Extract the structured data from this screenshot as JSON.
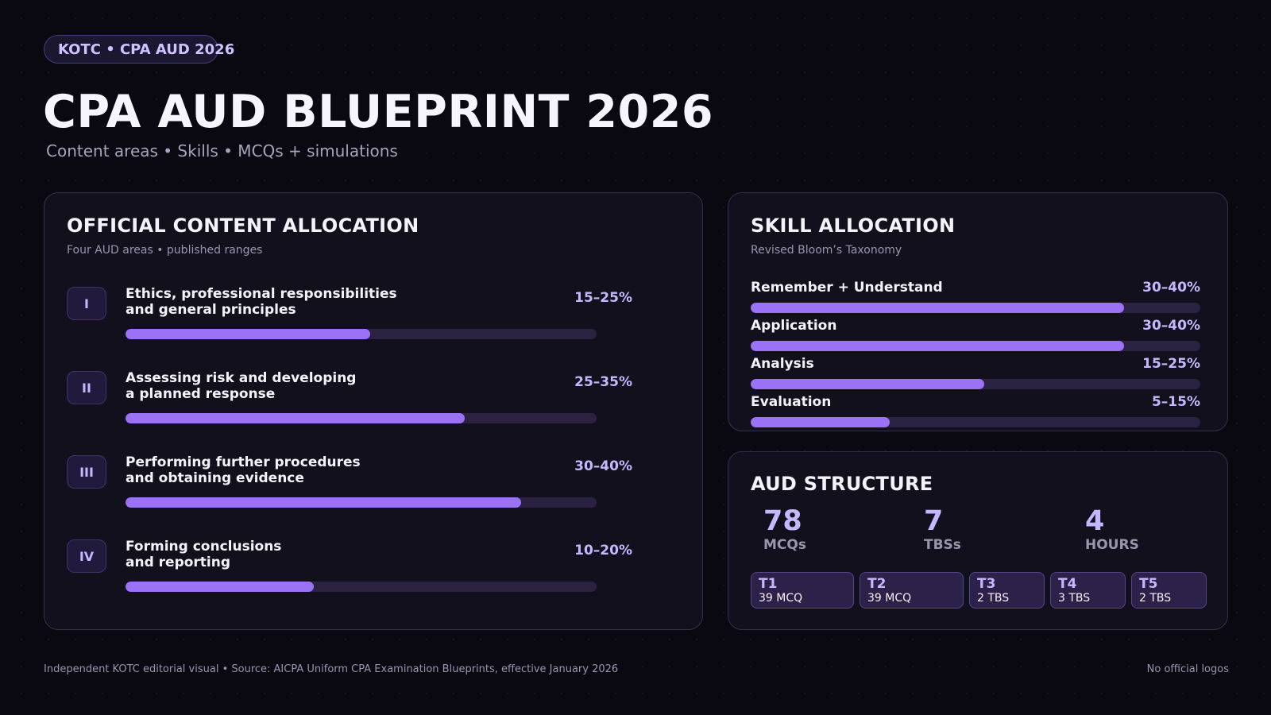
{
  "header": {
    "badge": "KOTC • CPA AUD 2026",
    "title": "CPA AUD BLUEPRINT 2026",
    "subtitle": "Content areas • Skills • MCQs + simulations"
  },
  "content_allocation": {
    "title": "OFFICIAL CONTENT ALLOCATION",
    "subtitle": "Four AUD areas • published ranges",
    "areas": [
      {
        "numeral": "I",
        "line1": "Ethics, professional responsibilities",
        "line2": "and general principles",
        "range": "15–25%",
        "bar_level_pct": 52
      },
      {
        "numeral": "II",
        "line1": "Assessing risk and developing",
        "line2": "a planned response",
        "range": "25–35%",
        "bar_level_pct": 72
      },
      {
        "numeral": "III",
        "line1": "Performing further procedures",
        "line2": "and obtaining evidence",
        "range": "30–40%",
        "bar_level_pct": 84
      },
      {
        "numeral": "IV",
        "line1": "Forming conclusions",
        "line2": "and reporting",
        "range": "10–20%",
        "bar_level_pct": 40
      }
    ]
  },
  "skill_allocation": {
    "title": "SKILL ALLOCATION",
    "subtitle": "Revised Bloom’s Taxonomy",
    "skills": [
      {
        "name": "Remember + Understand",
        "range": "30–40%",
        "bar_level_pct": 83
      },
      {
        "name": "Application",
        "range": "30–40%",
        "bar_level_pct": 83
      },
      {
        "name": "Analysis",
        "range": "15–25%",
        "bar_level_pct": 52
      },
      {
        "name": "Evaluation",
        "range": "5–15%",
        "bar_level_pct": 31
      }
    ]
  },
  "structure": {
    "title": "AUD STRUCTURE",
    "stats": [
      {
        "value": "78",
        "label": "MCQs"
      },
      {
        "value": "7",
        "label": "TBSs"
      },
      {
        "value": "4",
        "label": "HOURS"
      }
    ],
    "testlets": [
      {
        "name": "T1",
        "detail": "39 MCQ"
      },
      {
        "name": "T2",
        "detail": "39 MCQ"
      },
      {
        "name": "T3",
        "detail": "2 TBS"
      },
      {
        "name": "T4",
        "detail": "3 TBS"
      },
      {
        "name": "T5",
        "detail": "2 TBS"
      }
    ]
  },
  "footer": {
    "source": "Independent KOTC editorial visual • Source: AICPA Uniform CPA Examination Blueprints, effective January 2026",
    "note": "No official logos"
  },
  "colors": {
    "background": "#0a0912",
    "panel": "#13101e",
    "accent": "#9b72f5",
    "accent_light": "#c6b8ff",
    "track": "#2a2240"
  }
}
